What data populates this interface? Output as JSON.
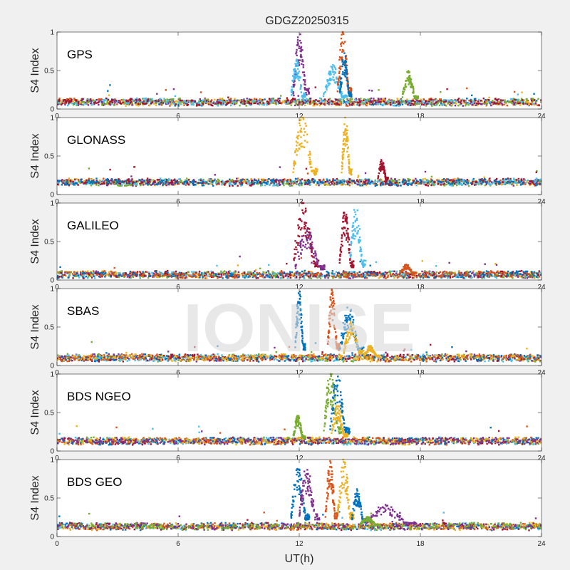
{
  "figure": {
    "title": "GDGZ20250315",
    "xlabel": "UT(h)",
    "watermark": "IONISE"
  },
  "colors": {
    "background": "#f0f0f0",
    "axes_bg": "#ffffff",
    "axis": "#262626",
    "watermark": "#d9d9d9",
    "series": [
      "#0072BD",
      "#D95319",
      "#EDB120",
      "#7E2F8E",
      "#77AC30",
      "#4DBEEE",
      "#A2142F"
    ]
  },
  "chart_data": {
    "type": "scatter",
    "title": "GDGZ20250315",
    "xlabel": "UT(h)",
    "xlim": [
      0,
      24
    ],
    "xticks": [
      0,
      6,
      12,
      18,
      24
    ],
    "ylim": [
      0,
      1
    ],
    "yticks": [
      0,
      0.5,
      1
    ],
    "yticklabels": [
      "0",
      "0.5",
      "1"
    ],
    "grid": false,
    "panels": [
      {
        "name": "GPS",
        "ylabel": "S4 Index",
        "baseline": 0.09,
        "events": [
          {
            "x_start": 11.7,
            "x_end": 12.5,
            "peak": 0.95,
            "color_index": 3
          },
          {
            "x_start": 11.6,
            "x_end": 12.3,
            "peak": 0.65,
            "color_index": 5
          },
          {
            "x_start": 13.2,
            "x_end": 14.4,
            "peak": 0.55,
            "color_index": 5
          },
          {
            "x_start": 13.9,
            "x_end": 14.6,
            "peak": 0.99,
            "color_index": 1
          },
          {
            "x_start": 14.0,
            "x_end": 14.6,
            "peak": 0.7,
            "color_index": 0
          },
          {
            "x_start": 17.1,
            "x_end": 17.9,
            "peak": 0.48,
            "color_index": 4
          }
        ]
      },
      {
        "name": "GLONASS",
        "ylabel": "S4 Index",
        "baseline": 0.16,
        "events": [
          {
            "x_start": 11.7,
            "x_end": 12.9,
            "peak": 1.0,
            "color_index": 2
          },
          {
            "x_start": 14.1,
            "x_end": 14.6,
            "peak": 0.98,
            "color_index": 2
          },
          {
            "x_start": 15.9,
            "x_end": 16.4,
            "peak": 0.45,
            "color_index": 6
          }
        ]
      },
      {
        "name": "GALILEO",
        "ylabel": "S4 Index",
        "baseline": 0.07,
        "events": [
          {
            "x_start": 11.7,
            "x_end": 13.0,
            "peak": 0.98,
            "color_index": 6
          },
          {
            "x_start": 11.8,
            "x_end": 13.3,
            "peak": 0.65,
            "color_index": 3
          },
          {
            "x_start": 14.0,
            "x_end": 14.7,
            "peak": 0.9,
            "color_index": 6
          },
          {
            "x_start": 14.5,
            "x_end": 15.3,
            "peak": 0.95,
            "color_index": 5
          },
          {
            "x_start": 17.0,
            "x_end": 17.8,
            "peak": 0.2,
            "color_index": 1
          }
        ]
      },
      {
        "name": "SBAS",
        "ylabel": "S4 Index",
        "baseline": 0.1,
        "events": [
          {
            "x_start": 11.8,
            "x_end": 12.3,
            "peak": 0.98,
            "color_index": 0
          },
          {
            "x_start": 13.4,
            "x_end": 14.0,
            "peak": 0.97,
            "color_index": 1
          },
          {
            "x_start": 14.0,
            "x_end": 15.2,
            "peak": 0.75,
            "color_index": 0
          },
          {
            "x_start": 14.2,
            "x_end": 15.2,
            "peak": 0.55,
            "color_index": 2
          },
          {
            "x_start": 15.2,
            "x_end": 16.0,
            "peak": 0.25,
            "color_index": 2
          }
        ]
      },
      {
        "name": "BDS NGEO",
        "ylabel": "S4 Index",
        "baseline": 0.13,
        "events": [
          {
            "x_start": 11.7,
            "x_end": 12.3,
            "peak": 0.45,
            "color_index": 4
          },
          {
            "x_start": 13.2,
            "x_end": 14.1,
            "peak": 0.99,
            "color_index": 4
          },
          {
            "x_start": 13.5,
            "x_end": 14.5,
            "peak": 0.97,
            "color_index": 0
          },
          {
            "x_start": 13.6,
            "x_end": 14.4,
            "peak": 0.6,
            "color_index": 2
          }
        ]
      },
      {
        "name": "BDS GEO",
        "ylabel": "S4 Index",
        "baseline": 0.13,
        "events": [
          {
            "x_start": 11.6,
            "x_end": 12.5,
            "peak": 0.9,
            "color_index": 0
          },
          {
            "x_start": 12.0,
            "x_end": 13.0,
            "peak": 0.9,
            "color_index": 3
          },
          {
            "x_start": 13.3,
            "x_end": 13.9,
            "peak": 0.98,
            "color_index": 1
          },
          {
            "x_start": 13.9,
            "x_end": 14.7,
            "peak": 0.98,
            "color_index": 2
          },
          {
            "x_start": 14.6,
            "x_end": 15.3,
            "peak": 0.6,
            "color_index": 0
          },
          {
            "x_start": 15.3,
            "x_end": 17.8,
            "peak": 0.4,
            "color_index": 3
          },
          {
            "x_start": 15.0,
            "x_end": 16.0,
            "peak": 0.25,
            "color_index": 4
          }
        ]
      }
    ]
  }
}
